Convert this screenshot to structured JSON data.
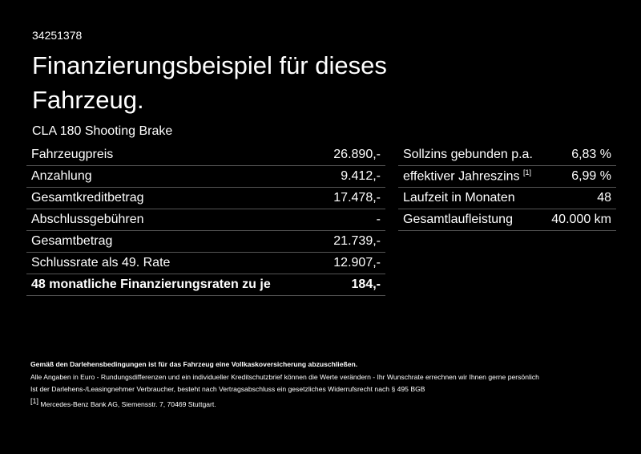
{
  "header": {
    "id": "34251378",
    "title": "Finanzierungsbeispiel für dieses Fahrzeug.",
    "model": "CLA 180 Shooting Brake"
  },
  "left_table": {
    "rows": [
      [
        "Fahrzeugpreis",
        "26.890,-"
      ],
      [
        "Anzahlung",
        "9.412,-"
      ],
      [
        "Gesamtkreditbetrag",
        "17.478,-"
      ],
      [
        "Abschlussgebühren",
        "-"
      ],
      [
        "Gesamtbetrag",
        "21.739,-"
      ],
      [
        "Schlussrate als 49. Rate",
        "12.907,-"
      ],
      [
        "48 monatliche Finanzierungsraten zu je",
        "184,-"
      ]
    ]
  },
  "right_table": {
    "rows": [
      {
        "label": "Sollzins gebunden p.a.",
        "value": "6,83 %"
      },
      {
        "label": "effektiver Jahreszins",
        "note": "[1]",
        "value": "6,99 %"
      },
      {
        "label": "Laufzeit in Monaten",
        "value": "48"
      },
      {
        "label": "Gesamtlaufleistung",
        "value": "40.000 km"
      }
    ]
  },
  "footer": {
    "notice": "Gemäß den Darlehensbedingungen ist für das Fahrzeug eine Vollkaskoversicherung abzuschließen.",
    "lines": [
      "Alle Angaben in Euro - Rundungsdifferenzen und ein individueller Kreditschutzbrief können die Werte verändern - Ihr Wunschrate errechnen wir Ihnen gerne persönlich",
      "Ist der Darlehens-/Leasingnehmer Verbraucher, besteht nach Vertragsabschluss ein gesetzliches Widerrufsrecht nach § 495 BGB"
    ],
    "footnote_mark": "[1]",
    "footnote": "Mercedes-Benz Bank AG, Siemensstr. 7, 70469 Stuttgart."
  }
}
